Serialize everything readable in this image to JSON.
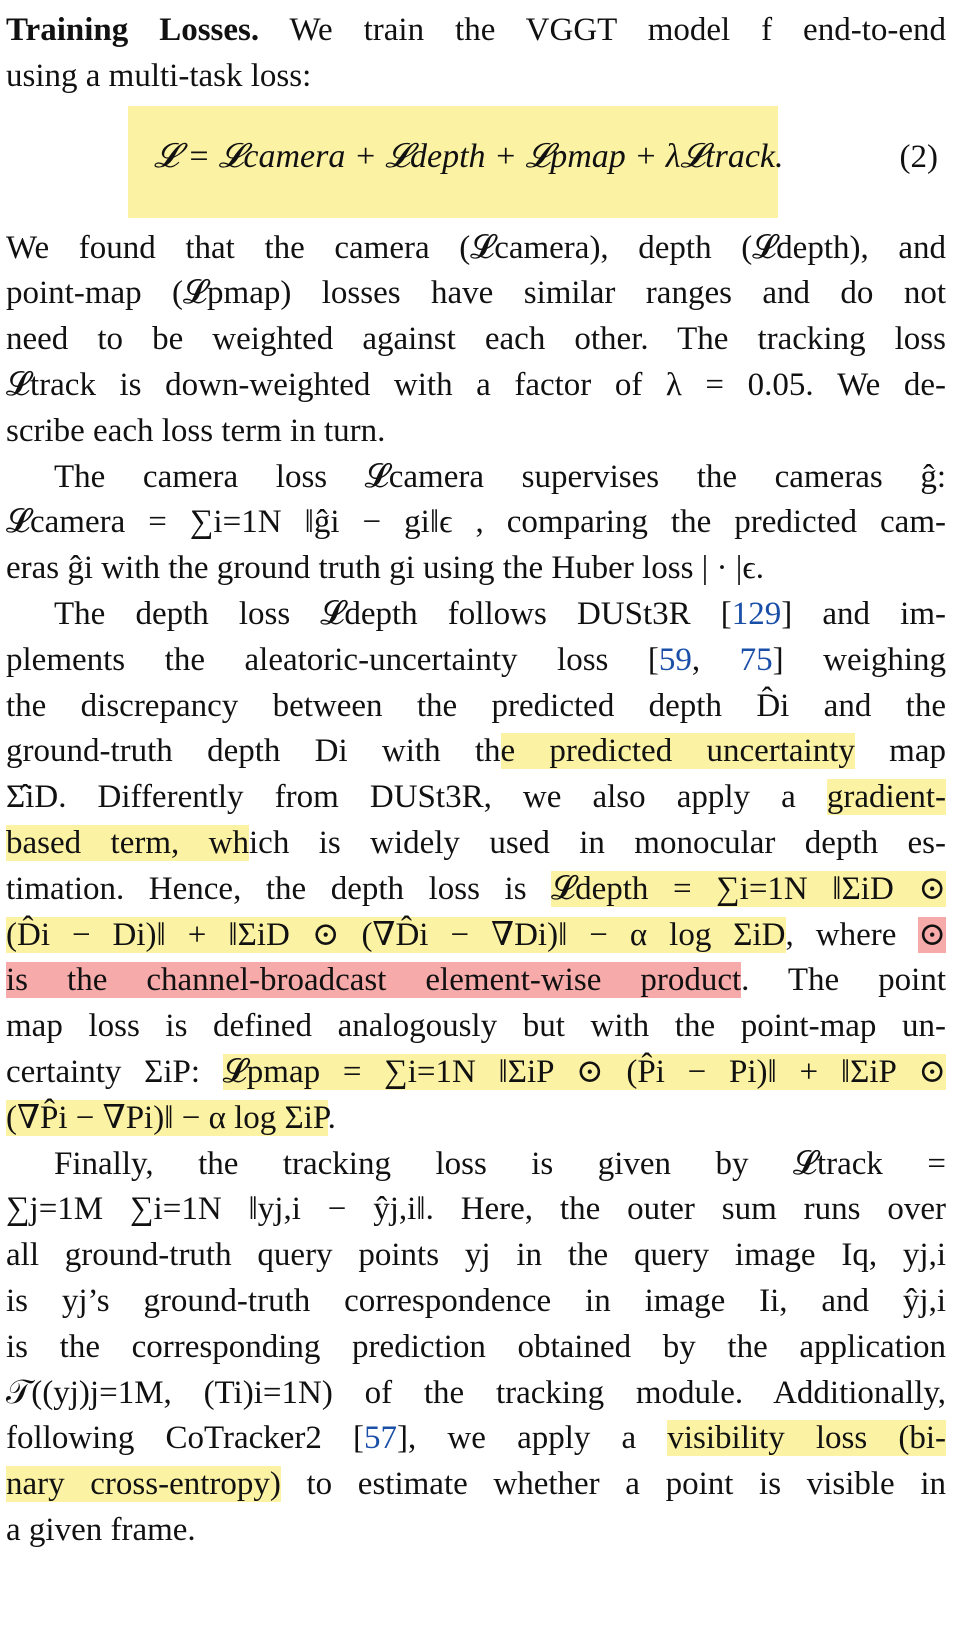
{
  "paragraph_intro": {
    "heading": "Training Losses.",
    "line1_rest": "We train the VGGT model f end-to-end",
    "line2": "using a multi-task loss:"
  },
  "equation": {
    "text": "𝓛 = 𝓛camera + 𝓛depth + 𝓛pmap + λ𝓛track.",
    "number": "(2)"
  },
  "paragraph_ranges": [
    "We found that the camera (𝓛camera), depth (𝓛depth), and",
    "point-map (𝓛pmap) losses have similar ranges and do not",
    "need to be weighted against each other. The tracking loss",
    "𝓛track is down-weighted with a factor of λ = 0.05. We de-",
    "scribe each loss term in turn."
  ],
  "paragraph_camera": [
    "The camera loss 𝓛camera supervises the cameras ĝ:",
    "𝓛camera = ∑i=1N ‖ĝi − gi‖ϵ , comparing the predicted cam-",
    "eras ĝi with the ground truth gi using the Huber loss | · |ϵ."
  ],
  "paragraph_depth": {
    "l1_pre": "The depth loss 𝓛depth follows DUSt3R [",
    "ref129": "129",
    "l1_post": "] and im-",
    "l2_pre": "plements the aleatoric-uncertainty loss [",
    "ref59": "59",
    "l2_mid": ", ",
    "ref75": "75",
    "l2_post": "] weighing",
    "l3": "the discrepancy between the predicted depth D̂i and the",
    "l4_pre": "ground-truth depth Di with th",
    "l4_hl": "e predicted uncertainty",
    "l4_post": " map",
    "l5_pre": "Σ̂iD. Differently from DUSt3R, we also apply a ",
    "l5_hl": "gradient-",
    "l6_hl": "based term, wh",
    "l6_post": "ich is widely used in monocular depth es-",
    "l7_pre": "timation. Hence, the depth loss is ",
    "l7_hl": "𝓛depth = ∑i=1N ‖ΣiD ⊙",
    "l8_hl": "(D̂i − Di)‖ + ‖ΣiD ⊙ (∇D̂i − ∇Di)‖ − α log ΣiD",
    "l8_post": ", where ",
    "l8_red": "⊙",
    "l9_red": "is the channel-broadcast element-wise product",
    "l9_post": ". The point",
    "l10": "map loss is defined analogously but with the point-map un-",
    "l11_pre": "certainty ΣiP: ",
    "l11_hl": "𝓛pmap = ∑i=1N ‖ΣiP ⊙ (P̂i − Pi)‖ + ‖ΣiP ⊙",
    "l12_hl": "(∇P̂i − ∇Pi)‖ − α log ΣiP",
    "l12_post": "."
  },
  "paragraph_tracking": {
    "lines": [
      "Finally, the tracking loss is given by 𝓛track =",
      "∑j=1M ∑i=1N ‖yj,i − ŷj,i‖. Here, the outer sum runs over",
      "all ground-truth query points yj in the query image Iq, yj,i",
      "is yj’s ground-truth correspondence in image Ii, and ŷj,i",
      "is the corresponding prediction obtained by the application",
      "𝒯((yj)j=1M, (Ti)i=1N) of the tracking module. Additionally,"
    ],
    "l7_pre": "following CoTracker2 [",
    "ref57": "57",
    "l7_mid": "], we apply a ",
    "l7_hl": "visibility loss (bi-",
    "l8_hl": "nary cross-entropy)",
    "l8_post": " to estimate whether a point is visible in",
    "l9": "a given frame."
  }
}
